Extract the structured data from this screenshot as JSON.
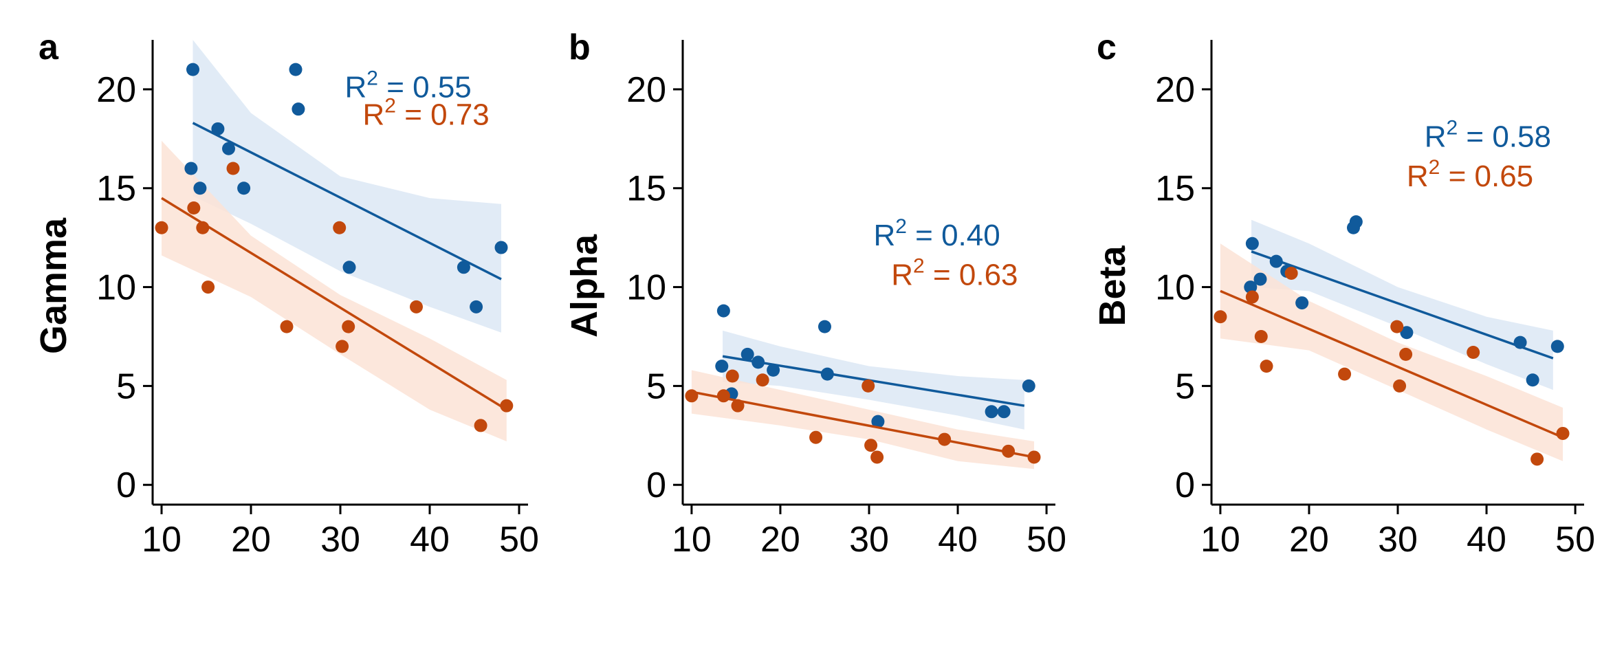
{
  "colors": {
    "blue": "#105a9b",
    "orange": "#c2480c",
    "blue_band": "#dce8f4",
    "orange_band": "#fbe3d6"
  },
  "chart_data": [
    {
      "type": "scatter",
      "panel": "a",
      "ylabel": "Gamma",
      "xlim": [
        9,
        51
      ],
      "ylim": [
        -1,
        22.5
      ],
      "x_ticks": [
        10,
        20,
        30,
        40,
        50
      ],
      "y_ticks": [
        0,
        5,
        10,
        15,
        20
      ],
      "series": [
        {
          "color": "blue",
          "points": [
            [
              13.5,
              21
            ],
            [
              13.3,
              16
            ],
            [
              14.3,
              15
            ],
            [
              16.3,
              18
            ],
            [
              17.5,
              17
            ],
            [
              19.2,
              15
            ],
            [
              25,
              21
            ],
            [
              25.3,
              19
            ],
            [
              31,
              11
            ],
            [
              43.8,
              11
            ],
            [
              45.2,
              9
            ],
            [
              48,
              12
            ]
          ],
          "fit": [
            [
              13.5,
              18.3
            ],
            [
              48,
              10.4
            ]
          ],
          "band_upper": [
            [
              13.5,
              22.5
            ],
            [
              20,
              18.8
            ],
            [
              30,
              15.6
            ],
            [
              40,
              14.5
            ],
            [
              48,
              14.2
            ]
          ],
          "band_lower": [
            [
              13.5,
              14.6
            ],
            [
              20,
              13.2
            ],
            [
              30,
              10.8
            ],
            [
              40,
              9.0
            ],
            [
              48,
              7.7
            ]
          ],
          "r2": "0.55",
          "r2_pos": [
            30.5,
            19.6
          ]
        },
        {
          "color": "orange",
          "points": [
            [
              10,
              13
            ],
            [
              13.6,
              14
            ],
            [
              14.6,
              13
            ],
            [
              15.2,
              10
            ],
            [
              18,
              16
            ],
            [
              24,
              8
            ],
            [
              29.9,
              13
            ],
            [
              30.2,
              7
            ],
            [
              30.9,
              8
            ],
            [
              38.5,
              9
            ],
            [
              45.7,
              3
            ],
            [
              48.6,
              4
            ]
          ],
          "fit": [
            [
              10,
              14.5
            ],
            [
              48.6,
              3.8
            ]
          ],
          "band_upper": [
            [
              10,
              17.4
            ],
            [
              20,
              12.6
            ],
            [
              30,
              9.6
            ],
            [
              40,
              7.4
            ],
            [
              48.6,
              5.3
            ]
          ],
          "band_lower": [
            [
              10,
              11.6
            ],
            [
              20,
              9.5
            ],
            [
              30,
              6.6
            ],
            [
              40,
              3.8
            ],
            [
              48.6,
              2.2
            ]
          ],
          "r2": "0.73",
          "r2_pos": [
            32.5,
            18.2
          ]
        }
      ]
    },
    {
      "type": "scatter",
      "panel": "b",
      "ylabel": "Alpha",
      "xlim": [
        9,
        51
      ],
      "ylim": [
        -1,
        22.5
      ],
      "x_ticks": [
        10,
        20,
        30,
        40,
        50
      ],
      "y_ticks": [
        0,
        5,
        10,
        15,
        20
      ],
      "series": [
        {
          "color": "blue",
          "points": [
            [
              13.4,
              6
            ],
            [
              13.6,
              8.8
            ],
            [
              14.5,
              4.6
            ],
            [
              16.3,
              6.6
            ],
            [
              17.5,
              6.2
            ],
            [
              19.2,
              5.8
            ],
            [
              25,
              8
            ],
            [
              25.3,
              5.6
            ],
            [
              31,
              3.2
            ],
            [
              43.8,
              3.7
            ],
            [
              45.2,
              3.7
            ],
            [
              48,
              5
            ]
          ],
          "fit": [
            [
              13.5,
              6.5
            ],
            [
              47.5,
              4.0
            ]
          ],
          "band_upper": [
            [
              13.5,
              7.8
            ],
            [
              20,
              7.0
            ],
            [
              30,
              6.0
            ],
            [
              40,
              5.5
            ],
            [
              47.5,
              5.3
            ]
          ],
          "band_lower": [
            [
              13.5,
              5.2
            ],
            [
              20,
              5.0
            ],
            [
              30,
              4.3
            ],
            [
              40,
              3.5
            ],
            [
              47.5,
              2.8
            ]
          ],
          "r2": "0.40",
          "r2_pos": [
            30.5,
            12.1
          ]
        },
        {
          "color": "orange",
          "points": [
            [
              10,
              4.5
            ],
            [
              13.6,
              4.5
            ],
            [
              14.6,
              5.5
            ],
            [
              15.2,
              4
            ],
            [
              18,
              5.3
            ],
            [
              24,
              2.4
            ],
            [
              29.9,
              5
            ],
            [
              30.2,
              2
            ],
            [
              30.9,
              1.4
            ],
            [
              38.5,
              2.3
            ],
            [
              45.7,
              1.7
            ],
            [
              48.6,
              1.4
            ]
          ],
          "fit": [
            [
              10,
              4.7
            ],
            [
              48.6,
              1.4
            ]
          ],
          "band_upper": [
            [
              10,
              5.8
            ],
            [
              20,
              4.8
            ],
            [
              30,
              3.8
            ],
            [
              40,
              2.8
            ],
            [
              48.6,
              2.2
            ]
          ],
          "band_lower": [
            [
              10,
              3.6
            ],
            [
              20,
              3.0
            ],
            [
              30,
              2.3
            ],
            [
              40,
              1.2
            ],
            [
              48.6,
              0.8
            ]
          ],
          "r2": "0.63",
          "r2_pos": [
            32.5,
            10.1
          ]
        }
      ]
    },
    {
      "type": "scatter",
      "panel": "c",
      "ylabel": "Beta",
      "xlim": [
        9,
        51
      ],
      "ylim": [
        -1,
        22.5
      ],
      "x_ticks": [
        10,
        20,
        30,
        40,
        50
      ],
      "y_ticks": [
        0,
        5,
        10,
        15,
        20
      ],
      "series": [
        {
          "color": "blue",
          "points": [
            [
              13.4,
              10
            ],
            [
              13.6,
              12.2
            ],
            [
              14.5,
              10.4
            ],
            [
              16.3,
              11.3
            ],
            [
              17.5,
              10.8
            ],
            [
              19.2,
              9.2
            ],
            [
              25,
              13
            ],
            [
              25.3,
              13.3
            ],
            [
              31,
              7.7
            ],
            [
              43.8,
              7.2
            ],
            [
              45.2,
              5.3
            ],
            [
              48,
              7
            ]
          ],
          "fit": [
            [
              13.5,
              11.8
            ],
            [
              47.5,
              6.4
            ]
          ],
          "band_upper": [
            [
              13.5,
              13.4
            ],
            [
              20,
              12.2
            ],
            [
              30,
              10.0
            ],
            [
              40,
              8.5
            ],
            [
              47.5,
              7.8
            ]
          ],
          "band_lower": [
            [
              13.5,
              10.0
            ],
            [
              20,
              9.8
            ],
            [
              30,
              8.0
            ],
            [
              40,
              6.1
            ],
            [
              47.5,
              4.8
            ]
          ],
          "r2": "0.58",
          "r2_pos": [
            33,
            17.1
          ]
        },
        {
          "color": "orange",
          "points": [
            [
              10,
              8.5
            ],
            [
              13.6,
              9.5
            ],
            [
              14.6,
              7.5
            ],
            [
              15.2,
              6
            ],
            [
              18,
              10.7
            ],
            [
              24,
              5.6
            ],
            [
              29.9,
              8
            ],
            [
              30.2,
              5
            ],
            [
              30.9,
              6.6
            ],
            [
              38.5,
              6.7
            ],
            [
              45.7,
              1.3
            ],
            [
              48.6,
              2.6
            ]
          ],
          "fit": [
            [
              10,
              9.8
            ],
            [
              48.6,
              2.4
            ]
          ],
          "band_upper": [
            [
              10,
              12.2
            ],
            [
              20,
              9.3
            ],
            [
              30,
              7.2
            ],
            [
              40,
              5.5
            ],
            [
              48.6,
              3.9
            ]
          ],
          "band_lower": [
            [
              10,
              7.4
            ],
            [
              20,
              6.8
            ],
            [
              30,
              4.8
            ],
            [
              40,
              2.8
            ],
            [
              48.6,
              1.2
            ]
          ],
          "r2": "0.65",
          "r2_pos": [
            31,
            15.1
          ]
        }
      ]
    }
  ]
}
